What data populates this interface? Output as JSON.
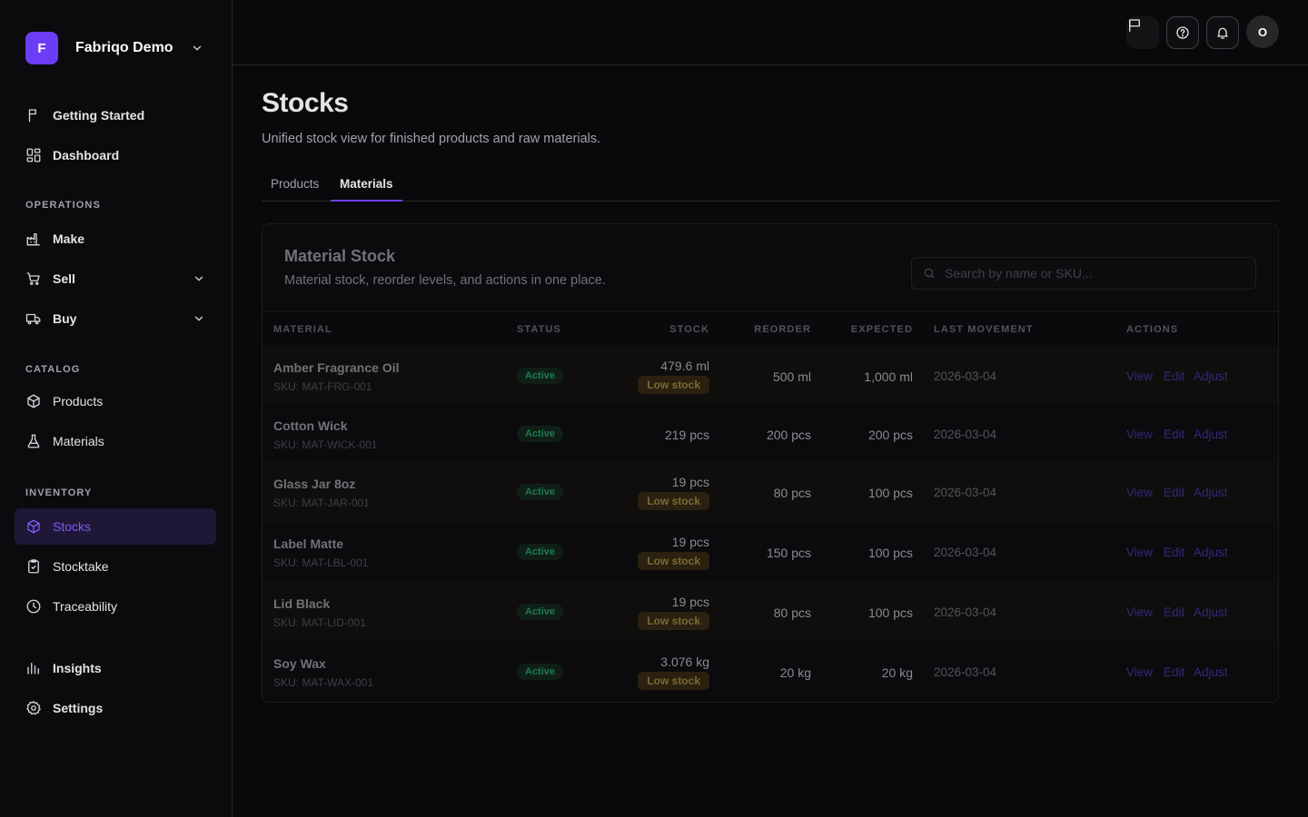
{
  "workspace": {
    "initial": "F",
    "name": "Fabriqo Demo"
  },
  "sidebar": {
    "top_items": [
      {
        "label": "Getting Started",
        "icon": "flag-icon"
      },
      {
        "label": "Dashboard",
        "icon": "grid-icon"
      }
    ],
    "sections": [
      {
        "label": "OPERATIONS",
        "items": [
          {
            "label": "Make",
            "icon": "factory-icon"
          },
          {
            "label": "Sell",
            "icon": "cart-icon",
            "expandable": true
          },
          {
            "label": "Buy",
            "icon": "truck-icon",
            "expandable": true
          }
        ]
      },
      {
        "label": "CATALOG",
        "items": [
          {
            "label": "Products",
            "icon": "box-icon"
          },
          {
            "label": "Materials",
            "icon": "flask-icon"
          }
        ]
      },
      {
        "label": "INVENTORY",
        "items": [
          {
            "label": "Stocks",
            "icon": "cube-icon",
            "active": true
          },
          {
            "label": "Stocktake",
            "icon": "clipboard-icon"
          },
          {
            "label": "Traceability",
            "icon": "clock-icon"
          }
        ]
      }
    ],
    "bottom_items": [
      {
        "label": "Insights",
        "icon": "bar-chart-icon"
      },
      {
        "label": "Settings",
        "icon": "gear-icon"
      }
    ]
  },
  "topbar": {
    "avatar_initial": "O"
  },
  "page": {
    "title": "Stocks",
    "subtitle": "Unified stock view for finished products and raw materials.",
    "tabs": [
      {
        "label": "Products"
      },
      {
        "label": "Materials",
        "active": true
      }
    ]
  },
  "card": {
    "title": "Material Stock",
    "subtitle": "Material stock, reorder levels, and actions in one place.",
    "search_placeholder": "Search by name or SKU..."
  },
  "table": {
    "columns": {
      "material": "MATERIAL",
      "status": "STATUS",
      "stock": "STOCK",
      "reorder": "REORDER",
      "expected": "EXPECTED",
      "last_movement": "LAST MOVEMENT",
      "actions": "ACTIONS"
    },
    "rows": [
      {
        "name": "Amber Fragrance Oil",
        "sku": "SKU: MAT-FRG-001",
        "status": "Active",
        "stock": "479.6 ml",
        "low": "Low stock",
        "reorder": "500 ml",
        "expected": "1,000 ml",
        "last": "2026-03-04"
      },
      {
        "name": "Cotton Wick",
        "sku": "SKU: MAT-WICK-001",
        "status": "Active",
        "stock": "219 pcs",
        "low": "",
        "reorder": "200 pcs",
        "expected": "200 pcs",
        "last": "2026-03-04"
      },
      {
        "name": "Glass Jar 8oz",
        "sku": "SKU: MAT-JAR-001",
        "status": "Active",
        "stock": "19 pcs",
        "low": "Low stock",
        "reorder": "80 pcs",
        "expected": "100 pcs",
        "last": "2026-03-04"
      },
      {
        "name": "Label Matte",
        "sku": "SKU: MAT-LBL-001",
        "status": "Active",
        "stock": "19 pcs",
        "low": "Low stock",
        "reorder": "150 pcs",
        "expected": "100 pcs",
        "last": "2026-03-04"
      },
      {
        "name": "Lid Black",
        "sku": "SKU: MAT-LID-001",
        "status": "Active",
        "stock": "19 pcs",
        "low": "Low stock",
        "reorder": "80 pcs",
        "expected": "100 pcs",
        "last": "2026-03-04"
      },
      {
        "name": "Soy Wax",
        "sku": "SKU: MAT-WAX-001",
        "status": "Active",
        "stock": "3.076 kg",
        "low": "Low stock",
        "reorder": "20 kg",
        "expected": "20 kg",
        "last": "2026-03-04"
      }
    ],
    "actions": {
      "view": "View",
      "edit": "Edit",
      "adjust": "Adjust"
    }
  },
  "colors": {
    "accent": "#6d3df5",
    "active_badge": "#1f7a4d",
    "low_badge": "#7a6a33",
    "link": "#33277a"
  }
}
